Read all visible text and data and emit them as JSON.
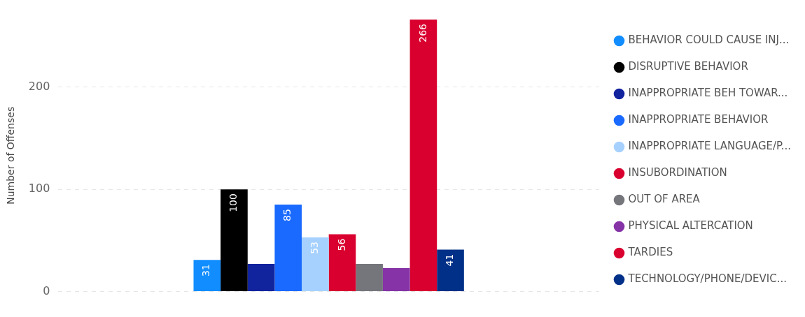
{
  "chart_data": {
    "type": "bar",
    "ylabel": "Number of Offenses",
    "categories": [
      null
    ],
    "series": [
      {
        "name": "BEHAVIOR COULD CAUSE INJ...",
        "color": "#118dff",
        "values": [
          31
        ],
        "value_labels": [
          "31"
        ]
      },
      {
        "name": "DISRUPTIVE BEHAVIOR",
        "color": "#000000",
        "values": [
          100
        ],
        "value_labels": [
          "100"
        ]
      },
      {
        "name": "INAPPROPRIATE BEH TOWAR...",
        "color": "#12239e",
        "values": [
          27
        ],
        "value_labels": [
          null
        ]
      },
      {
        "name": "INAPPROPRIATE BEHAVIOR",
        "color": "#1a6aff",
        "values": [
          85
        ],
        "value_labels": [
          "85"
        ]
      },
      {
        "name": "INAPPROPRIATE LANGUAGE/P...",
        "color": "#a6d1ff",
        "values": [
          53
        ],
        "value_labels": [
          "53"
        ]
      },
      {
        "name": "INSUBORDINATION",
        "color": "#d9002f",
        "values": [
          56
        ],
        "value_labels": [
          "56"
        ]
      },
      {
        "name": "OUT OF AREA",
        "color": "#75767c",
        "values": [
          27
        ],
        "value_labels": [
          null
        ]
      },
      {
        "name": "PHYSICAL ALTERCATION",
        "color": "#8533a6",
        "values": [
          23
        ],
        "value_labels": [
          null
        ]
      },
      {
        "name": "TARDIES",
        "color": "#d9002f",
        "values": [
          266
        ],
        "value_labels": [
          "266"
        ]
      },
      {
        "name": "TECHNOLOGY/PHONE/DEVIC...",
        "color": "#003087",
        "values": [
          41
        ],
        "value_labels": [
          "41"
        ]
      }
    ],
    "ylim": [
      0,
      266
    ],
    "yticks": [
      0,
      100,
      200
    ],
    "grid": "y",
    "legend": "right"
  }
}
